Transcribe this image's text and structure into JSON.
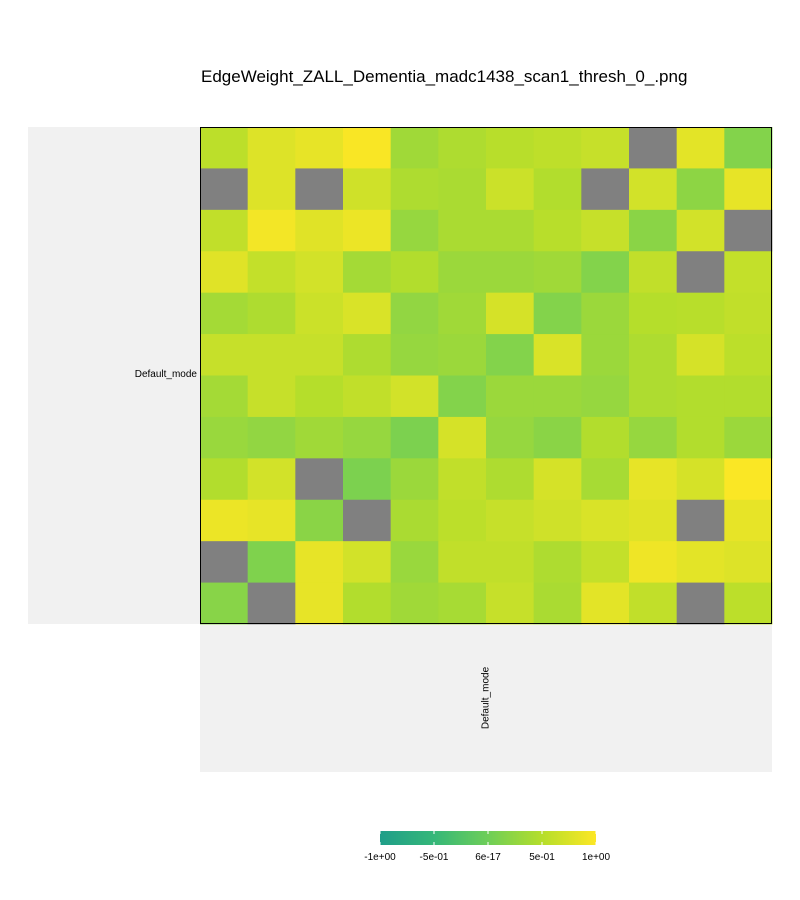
{
  "chart_data": {
    "type": "heatmap",
    "title": "EdgeWeight_ZALL_Dementia_madc1438_scan1_thresh_0_.png",
    "row_group_label": "Default_mode",
    "col_group_label": "Default_mode",
    "n_rows": 12,
    "n_cols": 12,
    "missing_color": "#808080",
    "colorscale": {
      "min": -1,
      "max": 1,
      "stops": [
        "#1f9e89",
        "#35b779",
        "#6ece58",
        "#b5de2b",
        "#fde725"
      ],
      "ticks": [
        -1,
        -0.5,
        6e-17,
        0.5,
        1
      ],
      "tick_labels": [
        "-1e+00",
        "-5e-01",
        "6e-17",
        "5e-01",
        "1e+00"
      ]
    },
    "values": [
      [
        0.55,
        0.78,
        0.85,
        0.97,
        0.35,
        0.45,
        0.52,
        0.56,
        0.62,
        null,
        0.82,
        0.15
      ],
      [
        null,
        0.78,
        null,
        0.68,
        0.45,
        0.42,
        0.65,
        0.48,
        null,
        0.7,
        0.22,
        0.85
      ],
      [
        0.58,
        0.93,
        0.8,
        0.88,
        0.28,
        0.42,
        0.42,
        0.52,
        0.62,
        0.2,
        0.7,
        null
      ],
      [
        0.8,
        0.6,
        0.7,
        0.38,
        0.48,
        0.32,
        0.32,
        0.35,
        0.15,
        0.58,
        null,
        0.6
      ],
      [
        0.38,
        0.45,
        0.65,
        0.75,
        0.25,
        0.35,
        0.72,
        0.15,
        0.32,
        0.5,
        0.52,
        0.58
      ],
      [
        0.62,
        0.62,
        0.62,
        0.45,
        0.28,
        0.32,
        0.15,
        0.75,
        0.32,
        0.45,
        0.72,
        0.55
      ],
      [
        0.38,
        0.62,
        0.5,
        0.58,
        0.7,
        0.15,
        0.32,
        0.32,
        0.28,
        0.45,
        0.48,
        0.48
      ],
      [
        0.3,
        0.25,
        0.35,
        0.28,
        0.1,
        0.72,
        0.28,
        0.2,
        0.48,
        0.28,
        0.48,
        0.32
      ],
      [
        0.48,
        0.7,
        null,
        0.1,
        0.32,
        0.58,
        0.45,
        0.72,
        0.4,
        0.85,
        0.72,
        0.98
      ],
      [
        0.88,
        0.85,
        0.2,
        null,
        0.42,
        0.55,
        0.62,
        0.68,
        0.75,
        0.8,
        null,
        0.85
      ],
      [
        null,
        0.12,
        0.85,
        0.7,
        0.3,
        0.58,
        0.58,
        0.45,
        0.6,
        0.9,
        0.82,
        0.78
      ],
      [
        0.18,
        null,
        0.85,
        0.48,
        0.35,
        0.4,
        0.62,
        0.42,
        0.82,
        0.58,
        null,
        0.55
      ]
    ]
  }
}
